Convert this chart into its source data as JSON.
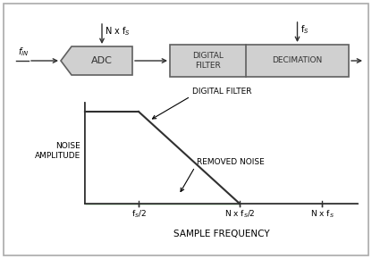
{
  "green_color": "#2db82d",
  "box_fill": "#d0d0d0",
  "box_edge": "#606060",
  "line_color": "#303030",
  "adc_label": "ADC",
  "digital_filter_box_label": "DIGITAL\nFILTER",
  "decimation_label": "DECIMATION",
  "noise_amplitude_label": "NOISE\nAMPLITUDE",
  "digital_filter_annot": "DIGITAL FILTER",
  "removed_noise_annot": "REMOVED NOISE",
  "sample_freq_label": "SAMPLE FREQUENCY",
  "nxfs_top_label": "N x f$_S$",
  "fs_top_label": "f$_S$",
  "fin_label": "f$_{IN}$",
  "fs2_tick": "f$_S$/2",
  "nxfs2_tick": "N x f$_S$/2",
  "nxfs_tick": "N x f$_S$"
}
